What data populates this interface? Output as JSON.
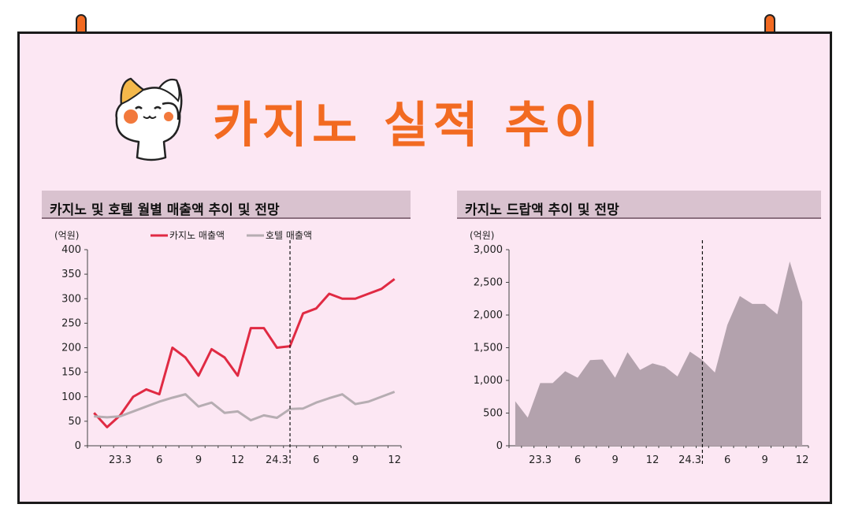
{
  "page_title": "카지노 실적 추이",
  "colors": {
    "accent": "#f26a21",
    "casino_line": "#e02a43",
    "hotel_line": "#b6adb2",
    "area_fill": "#b3a2ad",
    "panel_header": "#d9c2cf"
  },
  "chart_data": [
    {
      "type": "line",
      "title": "카지노 및 호텔 월별 매출액 추이 및 전망",
      "unit_label": "(억원)",
      "ylim": [
        0,
        400
      ],
      "yticks": [
        0,
        50,
        100,
        150,
        200,
        250,
        300,
        350,
        400
      ],
      "x_tick_labels": [
        {
          "index": 2,
          "label": "23.3"
        },
        {
          "index": 5,
          "label": "6"
        },
        {
          "index": 8,
          "label": "9"
        },
        {
          "index": 11,
          "label": "12"
        },
        {
          "index": 14,
          "label": "24.3"
        },
        {
          "index": 17,
          "label": "6"
        },
        {
          "index": 20,
          "label": "9"
        },
        {
          "index": 23,
          "label": "12"
        }
      ],
      "forecast_start_index": 15.5,
      "series": [
        {
          "name": "카지노 매출액",
          "values": [
            67,
            38,
            62,
            100,
            115,
            105,
            200,
            180,
            143,
            197,
            180,
            143,
            240,
            240,
            200,
            203,
            270,
            280,
            310,
            300,
            300,
            310,
            320,
            340
          ]
        },
        {
          "name": "호텔 매출액",
          "values": [
            60,
            58,
            60,
            70,
            80,
            90,
            98,
            105,
            80,
            88,
            67,
            70,
            52,
            62,
            57,
            75,
            76,
            88,
            97,
            105,
            85,
            90,
            100,
            110
          ]
        }
      ]
    },
    {
      "type": "area",
      "title": "카지노 드랍액 추이 및 전망",
      "unit_label": "(억원)",
      "ylim": [
        0,
        3000
      ],
      "yticks": [
        0,
        500,
        1000,
        1500,
        2000,
        2500,
        3000
      ],
      "ytick_labels": [
        "0",
        "500",
        "1,000",
        "1,500",
        "2,000",
        "2,500",
        "3,000"
      ],
      "x_tick_labels": [
        {
          "index": 2,
          "label": "23.3"
        },
        {
          "index": 5,
          "label": "6"
        },
        {
          "index": 8,
          "label": "9"
        },
        {
          "index": 11,
          "label": "12"
        },
        {
          "index": 14,
          "label": "24.3"
        },
        {
          "index": 17,
          "label": "6"
        },
        {
          "index": 20,
          "label": "9"
        },
        {
          "index": 23,
          "label": "12"
        }
      ],
      "forecast_start_index": 15.5,
      "series": [
        {
          "name": "",
          "values": [
            680,
            430,
            960,
            960,
            1140,
            1040,
            1310,
            1320,
            1040,
            1430,
            1160,
            1260,
            1210,
            1060,
            1440,
            1310,
            1120,
            1850,
            2290,
            2170,
            2170,
            2010,
            2820,
            2200
          ]
        }
      ]
    }
  ]
}
